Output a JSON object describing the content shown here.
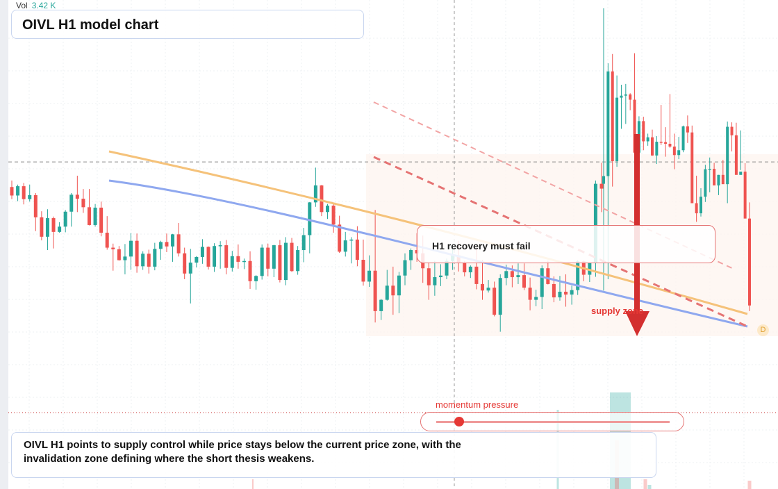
{
  "volume": {
    "label": "Vol",
    "value": "3.42 K"
  },
  "title": "OIVL H1 model chart",
  "callout": "H1 recovery must fail",
  "supply_label": "supply zone",
  "momentum": {
    "label": "momentum pressure",
    "level": 0.07
  },
  "summary": "OIVL H1 points to supply control while price stays below the current price zone, with the invalidation zone defining where the short thesis weakens.",
  "badge": "D",
  "colors": {
    "up": "#26a69a",
    "down": "#ef5350",
    "ma_fast": "#f5c27a",
    "ma_slow": "#8fa8ef",
    "accent": "#e53935",
    "panel_border": "#c9d6ef"
  },
  "chart_data": {
    "type": "candlestick",
    "title": "OIVL H1 model chart",
    "y_range": [
      0,
      100
    ],
    "grid": true,
    "reference_level": 62,
    "candles_ohlc": [
      [
        55.8,
        57.4,
        52.8,
        53.7
      ],
      [
        53.7,
        56.4,
        52.3,
        56.0
      ],
      [
        56.0,
        56.8,
        51.5,
        52.8
      ],
      [
        52.8,
        56.4,
        52.2,
        53.8
      ],
      [
        53.8,
        54.3,
        44.9,
        48.3
      ],
      [
        48.3,
        49.8,
        42.6,
        43.5
      ],
      [
        43.5,
        50.3,
        40.2,
        48.1
      ],
      [
        48.1,
        48.5,
        40.6,
        44.7
      ],
      [
        44.7,
        47.1,
        44.5,
        46.0
      ],
      [
        46.0,
        50.1,
        44.6,
        49.7
      ],
      [
        49.7,
        54.3,
        46.0,
        53.9
      ],
      [
        53.9,
        58.6,
        49.6,
        52.9
      ],
      [
        52.9,
        55.3,
        49.4,
        50.8
      ],
      [
        50.8,
        55.3,
        46.3,
        46.4
      ],
      [
        46.4,
        51.6,
        46.0,
        50.7
      ],
      [
        50.7,
        52.2,
        43.6,
        44.5
      ],
      [
        44.5,
        48.6,
        40.3,
        40.8
      ],
      [
        40.8,
        41.8,
        35.1,
        40.4
      ],
      [
        40.4,
        41.2,
        37.6,
        37.7
      ],
      [
        37.7,
        41.7,
        34.2,
        38.6
      ],
      [
        38.6,
        44.4,
        35.3,
        42.5
      ],
      [
        42.5,
        44.3,
        34.6,
        36.2
      ],
      [
        36.2,
        39.9,
        35.3,
        39.3
      ],
      [
        39.3,
        40.3,
        34.4,
        36.1
      ],
      [
        36.1,
        42.0,
        35.2,
        40.5
      ],
      [
        40.5,
        42.5,
        37.8,
        42.2
      ],
      [
        42.2,
        44.3,
        39.7,
        41.1
      ],
      [
        41.1,
        44.2,
        37.3,
        44.1
      ],
      [
        44.1,
        46.9,
        38.6,
        39.4
      ],
      [
        39.4,
        40.8,
        33.0,
        34.4
      ],
      [
        34.4,
        40.5,
        27.0,
        37.1
      ],
      [
        37.1,
        38.7,
        35.9,
        38.5
      ],
      [
        38.5,
        42.9,
        36.8,
        41.0
      ],
      [
        41.0,
        41.1,
        35.4,
        36.1
      ],
      [
        36.1,
        41.9,
        34.8,
        41.2
      ],
      [
        41.2,
        42.4,
        35.6,
        41.4
      ],
      [
        41.4,
        42.7,
        34.2,
        35.8
      ],
      [
        35.8,
        40.0,
        34.9,
        38.7
      ],
      [
        38.7,
        41.6,
        35.6,
        37.3
      ],
      [
        37.3,
        38.1,
        35.5,
        37.5
      ],
      [
        37.5,
        39.9,
        30.6,
        32.5
      ],
      [
        32.5,
        34.0,
        30.4,
        33.8
      ],
      [
        33.8,
        41.6,
        32.9,
        40.8
      ],
      [
        40.8,
        41.8,
        33.7,
        35.6
      ],
      [
        35.6,
        41.5,
        33.5,
        41.4
      ],
      [
        41.4,
        42.7,
        32.2,
        32.8
      ],
      [
        32.8,
        43.4,
        31.5,
        42.0
      ],
      [
        42.0,
        43.2,
        34.8,
        35.0
      ],
      [
        35.0,
        41.2,
        34.1,
        40.2
      ],
      [
        40.2,
        45.7,
        37.2,
        43.9
      ],
      [
        43.9,
        52.1,
        39.4,
        52.0
      ],
      [
        52.0,
        60.6,
        50.9,
        56.2
      ],
      [
        56.2,
        56.3,
        48.6,
        49.6
      ],
      [
        49.6,
        51.6,
        47.9,
        51.2
      ],
      [
        51.2,
        51.9,
        44.5,
        46.5
      ],
      [
        46.5,
        48.7,
        39.5,
        39.8
      ],
      [
        39.8,
        44.7,
        38.6,
        42.6
      ],
      [
        42.6,
        43.4,
        36.9,
        42.8
      ],
      [
        42.8,
        46.1,
        36.2,
        37.8
      ],
      [
        37.8,
        42.8,
        31.4,
        32.4
      ],
      [
        32.4,
        38.9,
        31.1,
        35.1
      ],
      [
        35.1,
        50.1,
        22.3,
        25.1
      ],
      [
        25.1,
        28.1,
        22.9,
        27.9
      ],
      [
        27.9,
        35.3,
        27.7,
        31.4
      ],
      [
        31.4,
        36.1,
        24.2,
        29.0
      ],
      [
        29.0,
        34.8,
        24.6,
        33.9
      ],
      [
        33.9,
        39.4,
        31.5,
        37.7
      ],
      [
        37.7,
        40.6,
        35.3,
        40.2
      ],
      [
        40.2,
        44.4,
        37.3,
        39.4
      ],
      [
        39.4,
        43.8,
        32.1,
        35.7
      ],
      [
        35.7,
        37.3,
        27.9,
        31.5
      ],
      [
        31.5,
        37.5,
        28.9,
        33.5
      ],
      [
        33.5,
        36.7,
        31.3,
        33.9
      ],
      [
        33.9,
        38.1,
        33.0,
        37.5
      ],
      [
        37.5,
        40.5,
        35.3,
        38.9
      ],
      [
        38.9,
        42.5,
        34.9,
        37.0
      ],
      [
        37.0,
        37.5,
        33.7,
        34.7
      ],
      [
        34.7,
        36.4,
        33.3,
        36.1
      ],
      [
        36.1,
        40.7,
        30.5,
        31.8
      ],
      [
        31.8,
        37.8,
        27.9,
        30.2
      ],
      [
        30.2,
        32.8,
        29.7,
        30.9
      ],
      [
        30.9,
        32.4,
        23.8,
        24.2
      ],
      [
        24.2,
        34.2,
        20.0,
        33.3
      ],
      [
        33.3,
        36.6,
        31.5,
        35.0
      ],
      [
        35.0,
        36.4,
        31.0,
        33.5
      ],
      [
        33.5,
        36.9,
        31.8,
        34.0
      ],
      [
        34.0,
        36.9,
        30.3,
        30.9
      ],
      [
        30.9,
        33.4,
        25.3,
        27.9
      ],
      [
        27.9,
        30.4,
        26.3,
        28.6
      ],
      [
        28.6,
        36.4,
        25.6,
        35.7
      ],
      [
        35.7,
        37.6,
        31.7,
        31.8
      ],
      [
        31.8,
        33.7,
        27.3,
        28.5
      ],
      [
        28.5,
        33.8,
        27.7,
        29.9
      ],
      [
        29.9,
        34.2,
        26.2,
        29.2
      ],
      [
        29.2,
        31.4,
        26.7,
        30.3
      ],
      [
        30.3,
        37.7,
        29.1,
        37.4
      ],
      [
        37.4,
        37.6,
        32.5,
        34.1
      ],
      [
        34.1,
        37.1,
        32.3,
        37.0
      ],
      [
        37.0,
        57.4,
        33.6,
        56.6
      ],
      [
        56.6,
        61.8,
        49.6,
        55.4
      ]
    ],
    "spike_candles_ohlc": [
      [
        56.6,
        100.0,
        30.2,
        58.5
      ],
      [
        58.5,
        86.4,
        33.0,
        84.4
      ],
      [
        84.4,
        88.7,
        55.9,
        62.2
      ],
      [
        62.2,
        83.4,
        60.8,
        77.9
      ],
      [
        77.9,
        81.1,
        70.2,
        78.4
      ],
      [
        78.4,
        81.3,
        71.4,
        78.7
      ],
      [
        78.7,
        79.0,
        74.8,
        77.4
      ],
      [
        77.4,
        88.9,
        63.6,
        64.3
      ],
      [
        64.3,
        73.3,
        62.8,
        72.1
      ],
      [
        72.1,
        73.2,
        64.9,
        67.1
      ],
      [
        67.1,
        69.0,
        66.0,
        68.1
      ],
      [
        68.1,
        70.0,
        63.5,
        63.6
      ],
      [
        63.6,
        68.4,
        61.5,
        67.0
      ],
      [
        67.0,
        76.1,
        66.2,
        66.9
      ],
      [
        66.9,
        70.6,
        63.3,
        66.5
      ],
      [
        66.5,
        78.8,
        65.5,
        65.8
      ],
      [
        65.8,
        69.0,
        60.2,
        63.7
      ],
      [
        63.7,
        68.2,
        62.7,
        64.9
      ],
      [
        64.9,
        71.0,
        64.4,
        70.8
      ],
      [
        70.8,
        73.5,
        66.7,
        69.3
      ],
      [
        69.3,
        71.0,
        53.6,
        51.8
      ],
      [
        51.8,
        58.6,
        47.2,
        49.3
      ],
      [
        49.3,
        55.5,
        48.5,
        53.4
      ],
      [
        53.4,
        61.3,
        52.1,
        60.2
      ],
      [
        60.2,
        63.1,
        54.5,
        60.3
      ],
      [
        60.3,
        61.8,
        58.7,
        56.2
      ],
      [
        56.2,
        58.8,
        53.8,
        58.8
      ],
      [
        58.8,
        62.5,
        57.6,
        56.5
      ],
      [
        56.5,
        72.0,
        51.8,
        70.7
      ],
      [
        70.7,
        71.8,
        64.6,
        68.6
      ],
      [
        68.6,
        71.7,
        63.5,
        58.8
      ],
      [
        58.8,
        69.8,
        60.0,
        59.6
      ],
      [
        59.6,
        61.7,
        49.8,
        48.0
      ],
      [
        48.0,
        52.0,
        25.1,
        26.5
      ]
    ],
    "series": []
  }
}
